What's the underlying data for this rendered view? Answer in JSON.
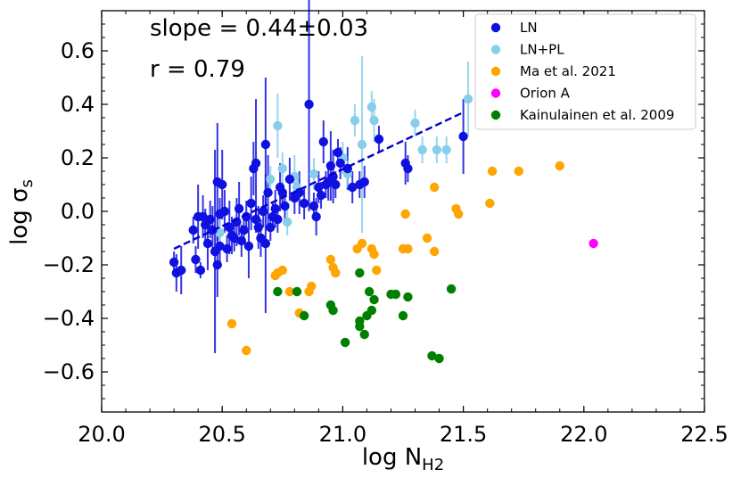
{
  "chart_data": {
    "type": "scatter",
    "xlabel": "log N",
    "xlabel_sub": "H2",
    "ylabel": "log σ",
    "ylabel_sub": "s",
    "xlim": [
      20.0,
      22.5
    ],
    "ylim": [
      -0.75,
      0.75
    ],
    "x_ticks": [
      20.0,
      20.5,
      21.0,
      21.5,
      22.0,
      22.5
    ],
    "x_tick_labels": [
      "20.0",
      "20.5",
      "21.0",
      "21.5",
      "22.0",
      "22.5"
    ],
    "y_ticks": [
      -0.6,
      -0.4,
      -0.2,
      0.0,
      0.2,
      0.4,
      0.6
    ],
    "y_tick_labels": [
      "−0.6",
      "−0.4",
      "−0.2",
      "0.0",
      "0.2",
      "0.4",
      "0.6"
    ],
    "annotations": [
      "slope = 0.44±0.03",
      "r = 0.79"
    ],
    "fit_line": {
      "x": [
        20.3,
        21.5
      ],
      "y": [
        -0.14,
        0.37
      ],
      "color": "#0000cc"
    },
    "legend_position": "top-right",
    "series": [
      {
        "name": "LN",
        "color": "#1010e0",
        "points": [
          {
            "x": 20.3,
            "y": -0.19,
            "err": 0.04
          },
          {
            "x": 20.31,
            "y": -0.23,
            "err": 0.07
          },
          {
            "x": 20.33,
            "y": -0.22,
            "err": 0.09
          },
          {
            "x": 20.38,
            "y": -0.07,
            "err": 0.05
          },
          {
            "x": 20.39,
            "y": -0.18,
            "err": 0.05
          },
          {
            "x": 20.4,
            "y": -0.02,
            "err": 0.12
          },
          {
            "x": 20.41,
            "y": -0.22,
            "err": 0.03
          },
          {
            "x": 20.42,
            "y": -0.02,
            "err": 0.08
          },
          {
            "x": 20.43,
            "y": -0.05,
            "err": 0.06
          },
          {
            "x": 20.44,
            "y": -0.12,
            "err": 0.1
          },
          {
            "x": 20.45,
            "y": -0.03,
            "err": 0.07
          },
          {
            "x": 20.46,
            "y": -0.07,
            "err": 0.09
          },
          {
            "x": 20.47,
            "y": -0.15,
            "err": 0.38
          },
          {
            "x": 20.48,
            "y": 0.11,
            "err": 0.22
          },
          {
            "x": 20.48,
            "y": -0.2,
            "err": 0.12
          },
          {
            "x": 20.49,
            "y": -0.01,
            "err": 0.06
          },
          {
            "x": 20.49,
            "y": -0.13,
            "err": 0.07
          },
          {
            "x": 20.5,
            "y": 0.1,
            "err": 0.13
          },
          {
            "x": 20.51,
            "y": 0.0,
            "err": 0.08
          },
          {
            "x": 20.52,
            "y": -0.14,
            "err": 0.05
          },
          {
            "x": 20.53,
            "y": -0.06,
            "err": 0.1
          },
          {
            "x": 20.54,
            "y": -0.09,
            "err": 0.07
          },
          {
            "x": 20.55,
            "y": -0.1,
            "err": 0.05
          },
          {
            "x": 20.56,
            "y": -0.04,
            "err": 0.09
          },
          {
            "x": 20.57,
            "y": 0.01,
            "err": 0.1
          },
          {
            "x": 20.58,
            "y": -0.11,
            "err": 0.06
          },
          {
            "x": 20.59,
            "y": -0.07,
            "err": 0.05
          },
          {
            "x": 20.6,
            "y": -0.02,
            "err": 0.06
          },
          {
            "x": 20.61,
            "y": -0.13,
            "err": 0.12
          },
          {
            "x": 20.62,
            "y": 0.03,
            "err": 0.1
          },
          {
            "x": 20.63,
            "y": 0.16,
            "err": 0.1
          },
          {
            "x": 20.64,
            "y": 0.18,
            "err": 0.24
          },
          {
            "x": 20.64,
            "y": -0.03,
            "err": 0.05
          },
          {
            "x": 20.65,
            "y": -0.06,
            "err": 0.08
          },
          {
            "x": 20.66,
            "y": -0.1,
            "err": 0.07
          },
          {
            "x": 20.67,
            "y": 0.0,
            "err": 0.06
          },
          {
            "x": 20.68,
            "y": -0.12,
            "err": 0.26
          },
          {
            "x": 20.68,
            "y": 0.25,
            "err": 0.25
          },
          {
            "x": 20.69,
            "y": 0.07,
            "err": 0.14
          },
          {
            "x": 20.7,
            "y": -0.06,
            "err": 0.05
          },
          {
            "x": 20.71,
            "y": -0.02,
            "err": 0.05
          },
          {
            "x": 20.72,
            "y": 0.01,
            "err": 0.07
          },
          {
            "x": 20.73,
            "y": -0.03,
            "err": 0.05
          },
          {
            "x": 20.74,
            "y": 0.09,
            "err": 0.09
          },
          {
            "x": 20.75,
            "y": 0.07,
            "err": 0.04
          },
          {
            "x": 20.76,
            "y": 0.02,
            "err": 0.05
          },
          {
            "x": 20.78,
            "y": 0.12,
            "err": 0.08
          },
          {
            "x": 20.8,
            "y": 0.05,
            "err": 0.06
          },
          {
            "x": 20.82,
            "y": 0.07,
            "err": 0.08
          },
          {
            "x": 20.84,
            "y": 0.03,
            "err": 0.06
          },
          {
            "x": 20.86,
            "y": 0.4,
            "err": 0.4
          },
          {
            "x": 20.88,
            "y": 0.02,
            "err": 0.05
          },
          {
            "x": 20.89,
            "y": -0.02,
            "err": 0.07
          },
          {
            "x": 20.9,
            "y": 0.09,
            "err": 0.06
          },
          {
            "x": 20.91,
            "y": 0.06,
            "err": 0.05
          },
          {
            "x": 20.92,
            "y": 0.26,
            "err": 0.08
          },
          {
            "x": 20.93,
            "y": 0.1,
            "err": 0.05
          },
          {
            "x": 20.94,
            "y": 0.11,
            "err": 0.07
          },
          {
            "x": 20.95,
            "y": 0.17,
            "err": 0.13
          },
          {
            "x": 20.96,
            "y": 0.13,
            "err": 0.1
          },
          {
            "x": 20.97,
            "y": 0.1,
            "err": 0.05
          },
          {
            "x": 20.98,
            "y": 0.22,
            "err": 0.05
          },
          {
            "x": 20.99,
            "y": 0.18,
            "err": 0.06
          },
          {
            "x": 21.02,
            "y": 0.16,
            "err": 0.08
          },
          {
            "x": 21.04,
            "y": 0.09,
            "err": 0.06
          },
          {
            "x": 21.07,
            "y": 0.1,
            "err": 0.05
          },
          {
            "x": 21.09,
            "y": 0.11,
            "err": 0.06
          },
          {
            "x": 21.15,
            "y": 0.27,
            "err": 0.05
          },
          {
            "x": 21.26,
            "y": 0.18,
            "err": 0.08
          },
          {
            "x": 21.27,
            "y": 0.16,
            "err": 0.05
          },
          {
            "x": 21.5,
            "y": 0.28,
            "err": 0.14
          }
        ]
      },
      {
        "name": "LN+PL",
        "color": "#87ceeb",
        "points": [
          {
            "x": 20.49,
            "y": -0.08,
            "err": 0.05
          },
          {
            "x": 20.7,
            "y": 0.12,
            "err": 0.05
          },
          {
            "x": 20.73,
            "y": 0.32,
            "err": 0.12
          },
          {
            "x": 20.75,
            "y": 0.16,
            "err": 0.06
          },
          {
            "x": 20.77,
            "y": -0.04,
            "err": 0.05
          },
          {
            "x": 20.8,
            "y": 0.13,
            "err": 0.08
          },
          {
            "x": 20.81,
            "y": 0.09,
            "err": 0.05
          },
          {
            "x": 20.88,
            "y": 0.14,
            "err": 0.06
          },
          {
            "x": 21.0,
            "y": 0.2,
            "err": 0.06
          },
          {
            "x": 21.02,
            "y": 0.14,
            "err": 0.05
          },
          {
            "x": 21.05,
            "y": 0.34,
            "err": 0.06
          },
          {
            "x": 21.08,
            "y": 0.25,
            "err": 0.33
          },
          {
            "x": 21.12,
            "y": 0.39,
            "err": 0.06
          },
          {
            "x": 21.13,
            "y": 0.34,
            "err": 0.08
          },
          {
            "x": 21.3,
            "y": 0.33,
            "err": 0.05
          },
          {
            "x": 21.33,
            "y": 0.23,
            "err": 0.05
          },
          {
            "x": 21.39,
            "y": 0.23,
            "err": 0.05
          },
          {
            "x": 21.43,
            "y": 0.23,
            "err": 0.05
          },
          {
            "x": 21.52,
            "y": 0.42,
            "err": 0.14
          }
        ]
      },
      {
        "name": "Ma et al. 2021",
        "color": "#ffa500",
        "points": [
          {
            "x": 20.54,
            "y": -0.42
          },
          {
            "x": 20.6,
            "y": -0.52
          },
          {
            "x": 20.72,
            "y": -0.24
          },
          {
            "x": 20.73,
            "y": -0.23
          },
          {
            "x": 20.75,
            "y": -0.22
          },
          {
            "x": 20.78,
            "y": -0.3
          },
          {
            "x": 20.82,
            "y": -0.38
          },
          {
            "x": 20.86,
            "y": -0.3
          },
          {
            "x": 20.87,
            "y": -0.28
          },
          {
            "x": 20.95,
            "y": -0.18
          },
          {
            "x": 20.96,
            "y": -0.21
          },
          {
            "x": 20.97,
            "y": -0.23
          },
          {
            "x": 21.06,
            "y": -0.14
          },
          {
            "x": 21.08,
            "y": -0.12
          },
          {
            "x": 21.12,
            "y": -0.14
          },
          {
            "x": 21.13,
            "y": -0.16
          },
          {
            "x": 21.14,
            "y": -0.22
          },
          {
            "x": 21.25,
            "y": -0.14
          },
          {
            "x": 21.27,
            "y": -0.14
          },
          {
            "x": 21.26,
            "y": -0.01
          },
          {
            "x": 21.35,
            "y": -0.1
          },
          {
            "x": 21.38,
            "y": -0.15
          },
          {
            "x": 21.38,
            "y": 0.09
          },
          {
            "x": 21.47,
            "y": 0.01
          },
          {
            "x": 21.48,
            "y": -0.01
          },
          {
            "x": 21.61,
            "y": 0.03
          },
          {
            "x": 21.62,
            "y": 0.15
          },
          {
            "x": 21.73,
            "y": 0.15
          },
          {
            "x": 21.9,
            "y": 0.17
          }
        ]
      },
      {
        "name": "Orion A",
        "color": "#ff00ff",
        "points": [
          {
            "x": 22.04,
            "y": -0.12
          }
        ]
      },
      {
        "name": "Kainulainen et al. 2009",
        "color": "#008000",
        "points": [
          {
            "x": 20.73,
            "y": -0.3
          },
          {
            "x": 20.81,
            "y": -0.3
          },
          {
            "x": 20.84,
            "y": -0.39
          },
          {
            "x": 20.95,
            "y": -0.35
          },
          {
            "x": 20.96,
            "y": -0.37
          },
          {
            "x": 21.01,
            "y": -0.49
          },
          {
            "x": 21.07,
            "y": -0.41
          },
          {
            "x": 21.07,
            "y": -0.23
          },
          {
            "x": 21.07,
            "y": -0.43
          },
          {
            "x": 21.09,
            "y": -0.46
          },
          {
            "x": 21.1,
            "y": -0.39
          },
          {
            "x": 21.11,
            "y": -0.3
          },
          {
            "x": 21.12,
            "y": -0.37
          },
          {
            "x": 21.13,
            "y": -0.33
          },
          {
            "x": 21.2,
            "y": -0.31
          },
          {
            "x": 21.22,
            "y": -0.31
          },
          {
            "x": 21.25,
            "y": -0.39
          },
          {
            "x": 21.27,
            "y": -0.32
          },
          {
            "x": 21.37,
            "y": -0.54
          },
          {
            "x": 21.4,
            "y": -0.55
          },
          {
            "x": 21.45,
            "y": -0.29
          }
        ]
      }
    ]
  }
}
